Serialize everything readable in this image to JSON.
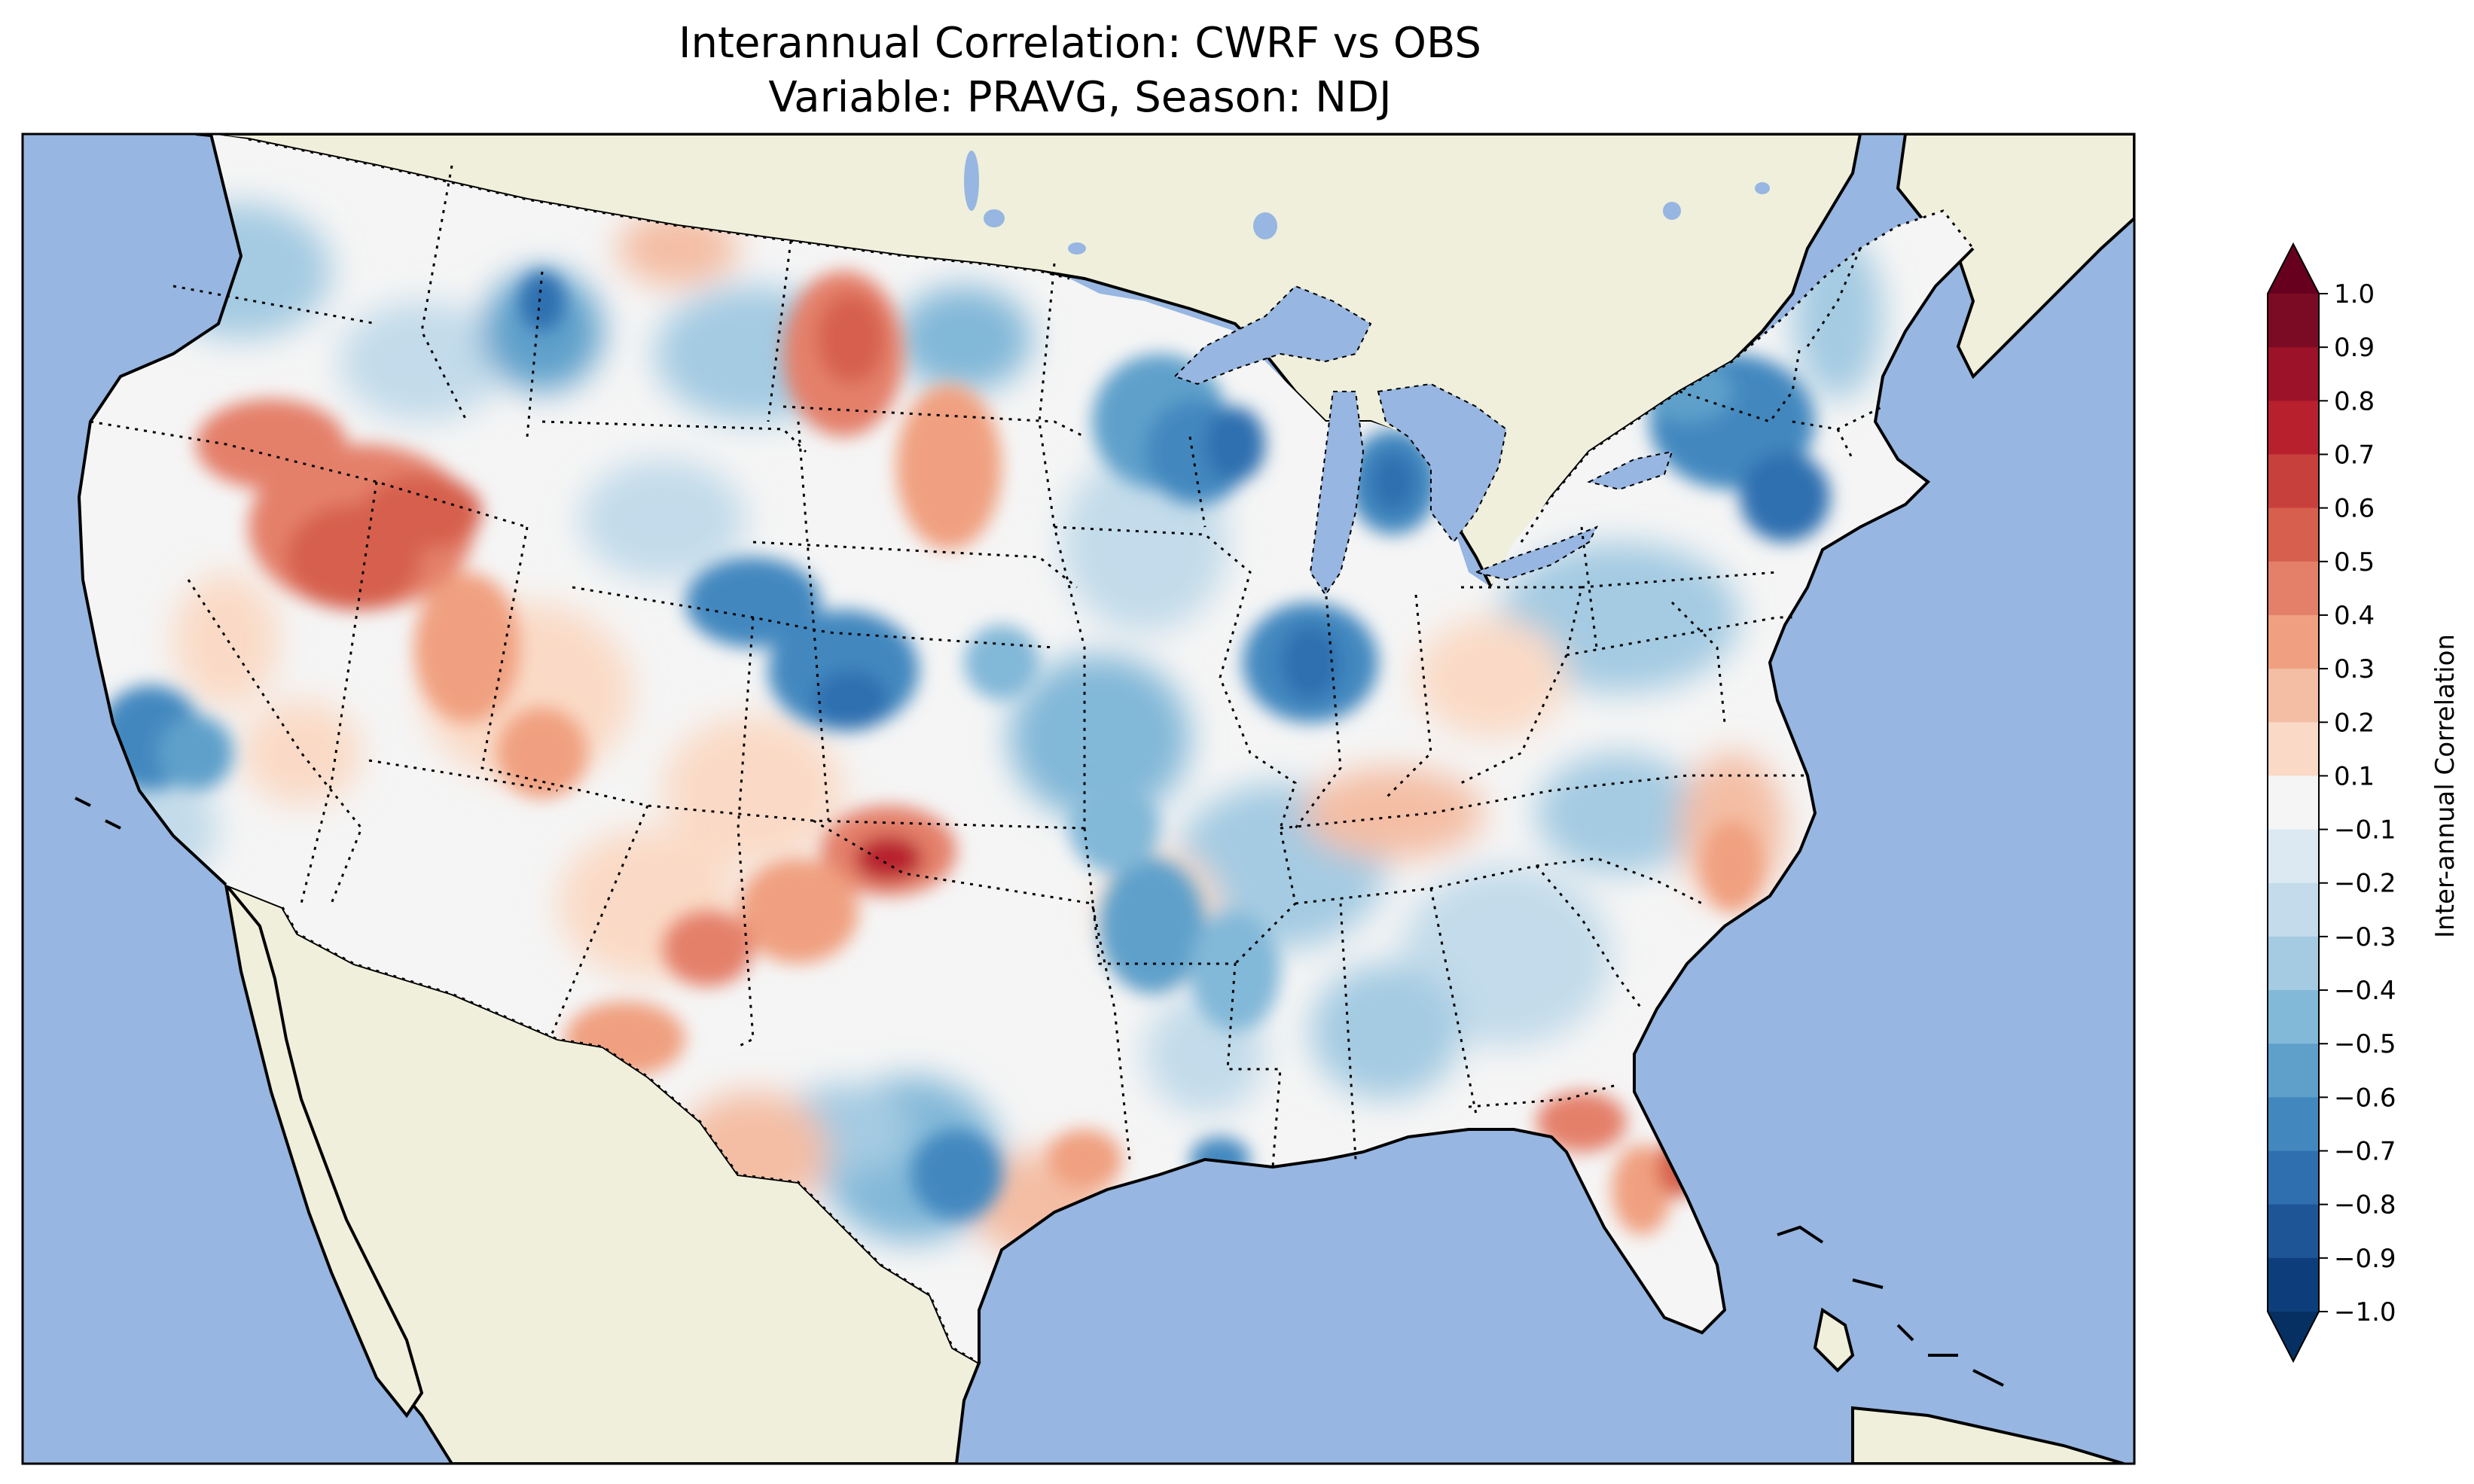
{
  "figure": {
    "title_line1": "Interannual Correlation: CWRF vs OBS",
    "title_line2": "Variable: PRAVG, Season: NDJ"
  },
  "map": {
    "projection": "Lambert Conformal (CONUS)",
    "ocean_color": "#97b6e1",
    "land_color": "#efefdb",
    "coastline": "solid",
    "state_borders": "dotted",
    "country_borders": "dotted"
  },
  "colorbar": {
    "label": "Inter-annual Correlation",
    "orientation": "vertical",
    "extend": "both",
    "levels": [
      -1.0,
      -0.9,
      -0.8,
      -0.7,
      -0.6,
      -0.5,
      -0.4,
      -0.3,
      -0.2,
      -0.1,
      0.1,
      0.2,
      0.3,
      0.4,
      0.5,
      0.6,
      0.7,
      0.8,
      0.9,
      1.0
    ],
    "tick_labels": [
      "1.0",
      "0.9",
      "0.8",
      "0.7",
      "0.6",
      "0.5",
      "0.4",
      "0.3",
      "0.2",
      "0.1",
      "−0.1",
      "−0.2",
      "−0.3",
      "−0.4",
      "−0.5",
      "−0.6",
      "−0.7",
      "−0.8",
      "−0.9",
      "−1.0"
    ],
    "colors_top_to_bottom": [
      "#7b0a24",
      "#9c1228",
      "#b8202e",
      "#c8403c",
      "#d6604d",
      "#e4806a",
      "#f0a080",
      "#f4bea4",
      "#fadac6",
      "#f5f5f5",
      "#dce9f2",
      "#c3dbea",
      "#a4cbe2",
      "#82b8d8",
      "#5fa0cb",
      "#4288bf",
      "#2f6fb0",
      "#1d5596",
      "#0e3d7b"
    ],
    "over_color": "#67001f",
    "under_color": "#053061"
  },
  "correlation_highlights": [
    {
      "region": "Great Basin / Nevada-Oregon-Idaho",
      "value": 0.6
    },
    {
      "region": "Western Dakotas",
      "value": 0.6
    },
    {
      "region": "Oklahoma panhandle",
      "value": 0.9
    },
    {
      "region": "Florida peninsula",
      "value": 0.5
    },
    {
      "region": "Wisconsin / Michigan",
      "value": -0.7
    },
    {
      "region": "Colorado / Kansas",
      "value": -0.7
    },
    {
      "region": "Northeast / New England",
      "value": -0.6
    },
    {
      "region": "Central California",
      "value": -0.6
    },
    {
      "region": "Illinois / Indiana",
      "value": -0.6
    },
    {
      "region": "Arkansas / Mississippi",
      "value": -0.5
    }
  ]
}
